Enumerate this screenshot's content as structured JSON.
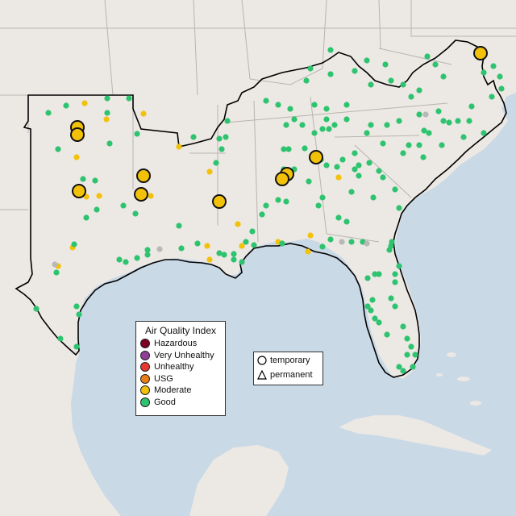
{
  "legend": {
    "title": "Air Quality Index",
    "categories": [
      {
        "label": "Hazardous",
        "color": "#7e0023"
      },
      {
        "label": "Very Unhealthy",
        "color": "#8f3f97"
      },
      {
        "label": "Unhealthy",
        "color": "#e8392e"
      },
      {
        "label": "USG",
        "color": "#e87e15"
      },
      {
        "label": "Moderate",
        "color": "#f2c10a"
      },
      {
        "label": "Good",
        "color": "#2ec36f"
      }
    ]
  },
  "type_legend": {
    "temporary": "temporary",
    "permanent": "permanent"
  },
  "colors": {
    "water": "#c9d9e6",
    "land": "#ece8e4",
    "state_border": "#b8b4b0",
    "region_outline": "#000000",
    "no_data": "#b8b8b8"
  },
  "map_features": {
    "region": "Southeast and South-Central United States",
    "basemap": "shaded relief, light gray land, blue water",
    "highlight_outline": "black boundary around monitored states"
  },
  "monitors": {
    "large_moderate_count": 10,
    "note": "small dots are monitor readings; large circles are temporary monitors"
  }
}
